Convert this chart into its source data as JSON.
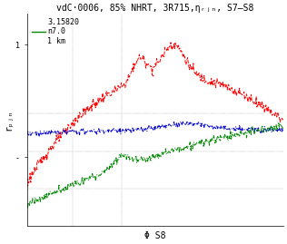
{
  "title": "vdC·0006, 85% NHRT, 3R715,ηᵣⱼₙ, S7–S8",
  "xlabel": "Φ S8",
  "ylabel": "rₚⱼₙ",
  "legend_text": [
    "3.15820",
    "n7.0",
    "1 km"
  ],
  "bg_color": "#ffffff",
  "title_fontsize": 7,
  "axis_fontsize": 7,
  "legend_fontsize": 6,
  "red_color": "#ff0000",
  "blue_color": "#0000cc",
  "green_color": "#008800"
}
